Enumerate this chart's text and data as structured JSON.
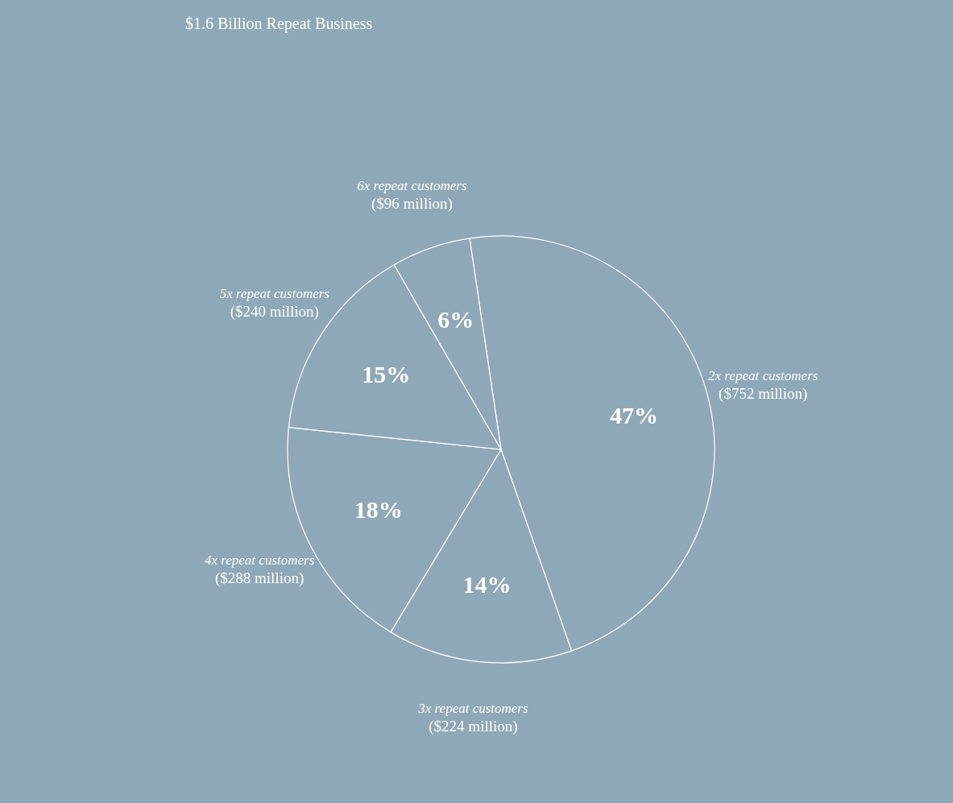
{
  "chart_data": {
    "type": "pie",
    "title": "$1.6 Billion Repeat Business",
    "categories": [
      "2x repeat customers",
      "3x repeat customers",
      "4x repeat customers",
      "5x repeat customers",
      "6x repeat customers"
    ],
    "values": [
      47,
      14,
      18,
      15,
      6
    ],
    "value_labels": [
      "47%",
      "14%",
      "18%",
      "15%",
      "6%"
    ],
    "annotations": [
      "($752 million)",
      "($224 million)",
      "($288 million)",
      "($240 million)",
      "($96 million)"
    ],
    "colors": [
      "#8fa8b7",
      "#8fa8b7",
      "#8fa8b7",
      "#8fa8b7",
      "#8fa8b7"
    ],
    "legend": false
  }
}
